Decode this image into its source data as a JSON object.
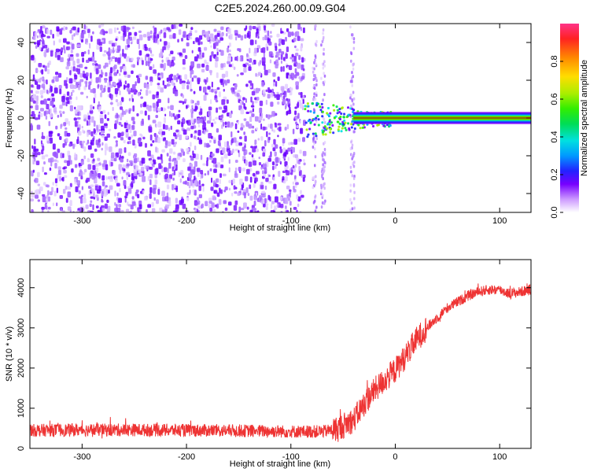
{
  "title": "C2E5.2024.260.00.09.G04",
  "chart_data": [
    {
      "type": "heatmap",
      "title": "",
      "xlabel": "Height of straight line (km)",
      "ylabel": "Frequency (Hz)",
      "xlim": [
        -350,
        130
      ],
      "ylim": [
        -50,
        50
      ],
      "x_ticks": [
        -300,
        -200,
        -100,
        0,
        100
      ],
      "x_tick_labels": [
        "-300",
        "-200",
        "-100",
        "0",
        "100"
      ],
      "y_ticks": [
        -40,
        -20,
        0,
        20,
        40
      ],
      "y_tick_labels": [
        "-40",
        "-20",
        "0",
        "20",
        "40"
      ],
      "colorbar": {
        "label": "Normalized spectral amplitude",
        "range": [
          0,
          1
        ],
        "ticks": [
          0.0,
          0.2,
          0.4,
          0.6,
          0.8
        ],
        "tick_labels": [
          "0.0",
          "0.2",
          "0.4",
          "0.6",
          "0.8"
        ],
        "colormap": "rainbow"
      },
      "features": {
        "noise_region_x": [
          -350,
          -88
        ],
        "transition_region_x": [
          -88,
          -5
        ],
        "carrier_region_x": [
          -40,
          130
        ],
        "carrier_frequency": 0,
        "carrier_amplitude": 1.0
      }
    },
    {
      "type": "line",
      "title": "",
      "xlabel": "Height of straight line (km)",
      "ylabel": "SNR (10 * v/v)",
      "xlim": [
        -350,
        130
      ],
      "ylim": [
        0,
        4700
      ],
      "x_ticks": [
        -300,
        -200,
        -100,
        0,
        100
      ],
      "x_tick_labels": [
        "-300",
        "-200",
        "-100",
        "0",
        "100"
      ],
      "y_ticks": [
        0,
        1000,
        2000,
        3000,
        4000
      ],
      "y_tick_labels": [
        "0",
        "1000",
        "2000",
        "3000",
        "4000"
      ],
      "series": [
        {
          "color": "#ee3333",
          "x": [
            -350,
            -300,
            -250,
            -200,
            -150,
            -100,
            -70,
            -55,
            -45,
            -40,
            -30,
            -20,
            -10,
            0,
            10,
            20,
            30,
            40,
            50,
            60,
            70,
            80,
            90,
            100,
            110,
            120,
            130
          ],
          "y": [
            450,
            460,
            460,
            450,
            440,
            420,
            420,
            480,
            650,
            700,
            1100,
            1450,
            1700,
            1950,
            2300,
            2700,
            3000,
            3250,
            3500,
            3650,
            3800,
            3900,
            3950,
            3950,
            3850,
            3900,
            3950
          ]
        }
      ]
    }
  ]
}
